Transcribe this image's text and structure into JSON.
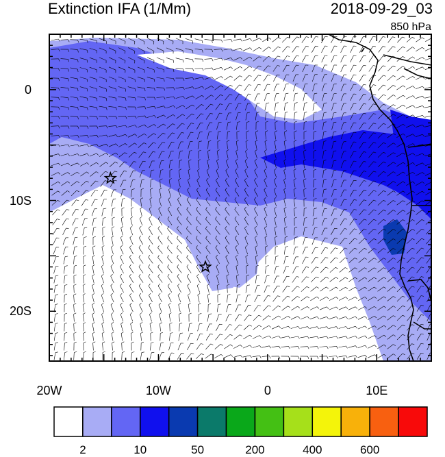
{
  "title": "Extinction IFA (1/Mm)",
  "datetime": "2018-09-29_03",
  "level": "850 hPa",
  "axes": {
    "lat_labels": [
      {
        "text": "0",
        "lat": 0
      },
      {
        "text": "10S",
        "lat": -10
      },
      {
        "text": "20S",
        "lat": -20
      }
    ],
    "lon_labels": [
      {
        "text": "20W",
        "lon": -20
      },
      {
        "text": "10W",
        "lon": -10
      },
      {
        "text": "0",
        "lon": 0
      },
      {
        "text": "10E",
        "lon": 10
      }
    ],
    "lon_range": [
      -20,
      15
    ],
    "lat_range": [
      -24.5,
      5
    ]
  },
  "markers": [
    {
      "name": "station-star-1",
      "lon": -14.4,
      "lat": -8.0
    },
    {
      "name": "station-star-2",
      "lon": -5.7,
      "lat": -16.0
    }
  ],
  "colorbar": {
    "colors": [
      "#ffffff",
      "#a8acf5",
      "#6366f4",
      "#1010ee",
      "#0a3ab0",
      "#0b7a6a",
      "#0aa81a",
      "#44c014",
      "#a6e01a",
      "#f4f40a",
      "#f8b10a",
      "#f86010",
      "#f80a0a"
    ],
    "labels": [
      {
        "text": "2",
        "boundary": 1
      },
      {
        "text": "10",
        "boundary": 3
      },
      {
        "text": "50",
        "boundary": 5
      },
      {
        "text": "200",
        "boundary": 7
      },
      {
        "text": "400",
        "boundary": 9
      },
      {
        "text": "600",
        "boundary": 11
      }
    ]
  }
}
